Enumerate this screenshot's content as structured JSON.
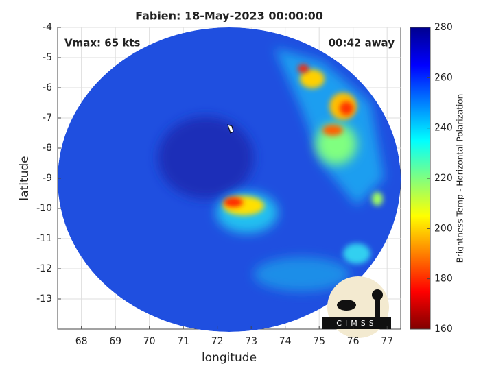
{
  "chart_data": {
    "type": "image",
    "title": "Fabien: 18-May-2023 00:00:00",
    "annotations": [
      "Vmax: 65 kts",
      "00:42 away"
    ],
    "xlabel": "longitude",
    "ylabel": "latitude",
    "xlim": [
      67.3,
      77.4
    ],
    "ylim": [
      -14,
      -4
    ],
    "xticks": [
      68,
      69,
      70,
      71,
      72,
      73,
      74,
      75,
      76,
      77
    ],
    "yticks": [
      -4,
      -5,
      -6,
      -7,
      -8,
      -9,
      -10,
      -11,
      -12,
      -13
    ],
    "grid": true,
    "colorbar": {
      "label": "Brightness Temp - Horizontal Polarization",
      "lim": [
        160,
        280
      ],
      "ticks": [
        160,
        180,
        200,
        220,
        240,
        260,
        280
      ],
      "colormap": [
        "#800000",
        "#ff0000",
        "#ff8000",
        "#ffff00",
        "#80ff80",
        "#00ffff",
        "#0080ff",
        "#0000ff",
        "#00008f"
      ]
    },
    "logo_text": "CIMSS"
  }
}
